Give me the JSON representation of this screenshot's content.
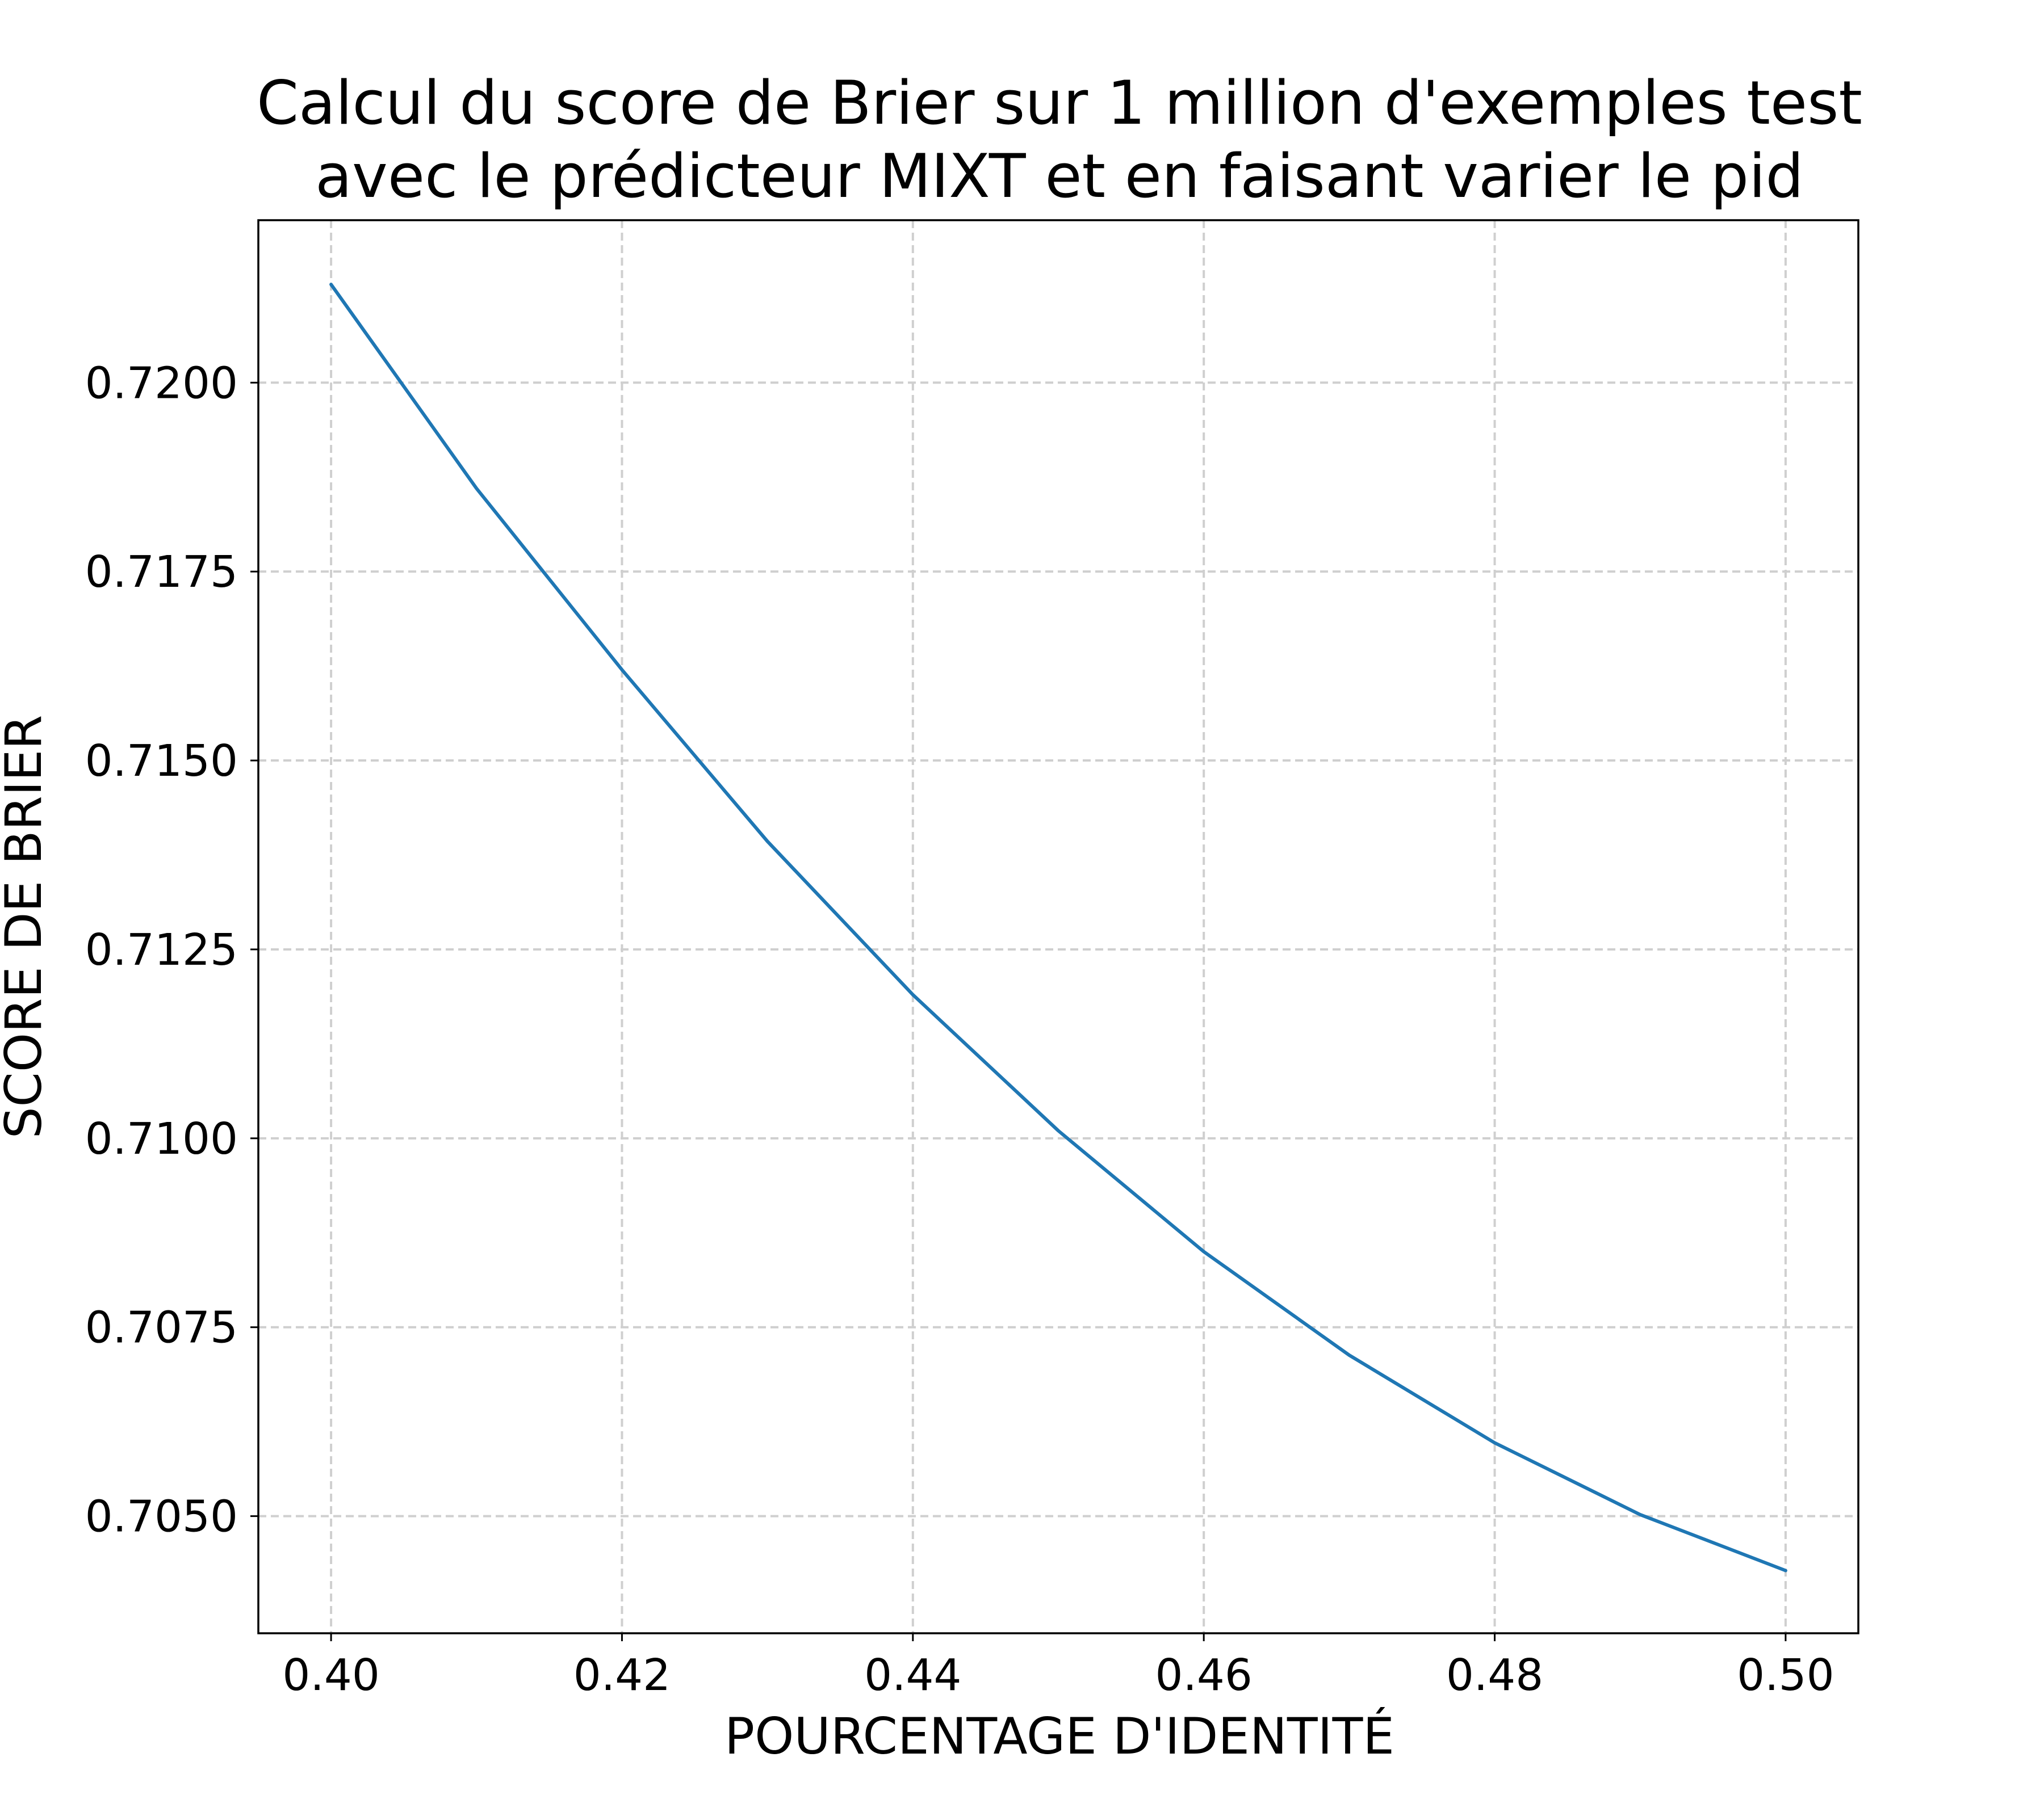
{
  "chart_data": {
    "type": "line",
    "title": [
      "Calcul du score de Brier sur 1 million d'exemples test",
      "avec le prédicteur MIXT et en faisant varier le pid"
    ],
    "xlabel": "POURCENTAGE D'IDENTITÉ",
    "ylabel": "SCORE DE BRIER",
    "xlim": [
      0.395,
      0.505
    ],
    "ylim": [
      0.70345,
      0.72215
    ],
    "xticks": [
      0.4,
      0.42,
      0.44,
      0.46,
      0.48,
      0.5
    ],
    "xtick_labels": [
      "0.40",
      "0.42",
      "0.44",
      "0.46",
      "0.48",
      "0.50"
    ],
    "yticks": [
      0.705,
      0.7075,
      0.71,
      0.7125,
      0.715,
      0.7175,
      0.72
    ],
    "ytick_labels": [
      "0.7050",
      "0.7075",
      "0.7100",
      "0.7125",
      "0.7150",
      "0.7175",
      "0.7200"
    ],
    "grid": true,
    "line_color": "#1f77b4",
    "series": [
      {
        "x": [
          0.4,
          0.41,
          0.42,
          0.43,
          0.44,
          0.45,
          0.46,
          0.47,
          0.48,
          0.49,
          0.5
        ],
        "values": [
          0.7213,
          0.7186,
          0.7162,
          0.71393,
          0.7119,
          0.7101,
          0.7085,
          0.70713,
          0.70597,
          0.70502,
          0.70428
        ]
      }
    ]
  }
}
